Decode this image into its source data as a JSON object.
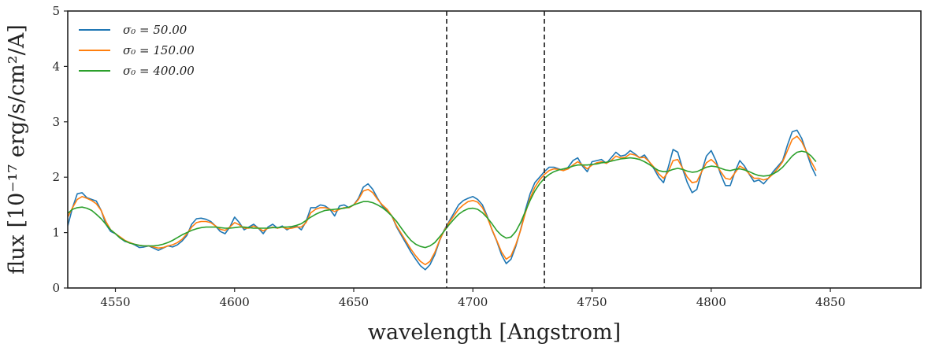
{
  "chart_data": {
    "type": "line",
    "title": "",
    "xlabel": "wavelength [Angstrom]",
    "ylabel": "flux [10⁻¹⁷ erg/s/cm²/A]",
    "xlim": [
      4530,
      4888
    ],
    "ylim": [
      0,
      5
    ],
    "xticks": [
      4550,
      4600,
      4650,
      4700,
      4750,
      4800,
      4850
    ],
    "yticks": [
      0,
      1,
      2,
      3,
      4,
      5
    ],
    "grid": false,
    "legend_position": "top-left",
    "vlines": [
      4689,
      4730
    ],
    "x_step": 2,
    "series": [
      {
        "name": "σ₀ = 50.00",
        "color": "#1f77b4",
        "values": [
          1.12,
          1.45,
          1.7,
          1.72,
          1.63,
          1.6,
          1.57,
          1.4,
          1.15,
          1.02,
          0.98,
          0.9,
          0.84,
          0.82,
          0.78,
          0.73,
          0.74,
          0.76,
          0.72,
          0.68,
          0.72,
          0.76,
          0.74,
          0.78,
          0.85,
          0.95,
          1.15,
          1.25,
          1.26,
          1.24,
          1.2,
          1.12,
          1.02,
          0.98,
          1.1,
          1.28,
          1.18,
          1.05,
          1.1,
          1.15,
          1.08,
          0.98,
          1.1,
          1.15,
          1.08,
          1.12,
          1.05,
          1.1,
          1.12,
          1.05,
          1.2,
          1.45,
          1.45,
          1.5,
          1.48,
          1.42,
          1.3,
          1.48,
          1.5,
          1.45,
          1.5,
          1.62,
          1.82,
          1.88,
          1.78,
          1.62,
          1.48,
          1.4,
          1.3,
          1.1,
          0.95,
          0.8,
          0.65,
          0.52,
          0.4,
          0.33,
          0.42,
          0.6,
          0.85,
          1.05,
          1.2,
          1.35,
          1.5,
          1.58,
          1.62,
          1.65,
          1.6,
          1.5,
          1.3,
          1.05,
          0.85,
          0.6,
          0.44,
          0.52,
          0.75,
          1.05,
          1.4,
          1.7,
          1.9,
          2.0,
          2.1,
          2.18,
          2.18,
          2.15,
          2.12,
          2.18,
          2.3,
          2.35,
          2.2,
          2.1,
          2.28,
          2.3,
          2.32,
          2.25,
          2.35,
          2.45,
          2.38,
          2.4,
          2.48,
          2.42,
          2.35,
          2.4,
          2.28,
          2.15,
          2.0,
          1.9,
          2.18,
          2.5,
          2.45,
          2.15,
          1.9,
          1.72,
          1.78,
          2.1,
          2.38,
          2.48,
          2.3,
          2.05,
          1.85,
          1.85,
          2.1,
          2.3,
          2.2,
          2.05,
          1.92,
          1.95,
          1.88,
          1.98,
          2.1,
          2.2,
          2.3,
          2.58,
          2.82,
          2.85,
          2.7,
          2.45,
          2.2,
          2.02
        ]
      },
      {
        "name": "σ₀ = 150.00",
        "color": "#ff7f0e",
        "values": [
          1.28,
          1.45,
          1.6,
          1.65,
          1.62,
          1.58,
          1.52,
          1.4,
          1.2,
          1.05,
          0.98,
          0.92,
          0.86,
          0.82,
          0.79,
          0.77,
          0.76,
          0.76,
          0.74,
          0.72,
          0.73,
          0.76,
          0.78,
          0.82,
          0.88,
          0.98,
          1.1,
          1.18,
          1.2,
          1.2,
          1.18,
          1.12,
          1.06,
          1.04,
          1.1,
          1.18,
          1.14,
          1.08,
          1.08,
          1.12,
          1.08,
          1.03,
          1.08,
          1.1,
          1.08,
          1.1,
          1.07,
          1.08,
          1.1,
          1.1,
          1.18,
          1.36,
          1.42,
          1.45,
          1.45,
          1.42,
          1.38,
          1.42,
          1.45,
          1.45,
          1.5,
          1.6,
          1.75,
          1.78,
          1.72,
          1.6,
          1.5,
          1.42,
          1.3,
          1.12,
          0.98,
          0.84,
          0.7,
          0.58,
          0.48,
          0.42,
          0.48,
          0.64,
          0.86,
          1.04,
          1.18,
          1.3,
          1.42,
          1.5,
          1.56,
          1.58,
          1.55,
          1.45,
          1.28,
          1.06,
          0.86,
          0.65,
          0.52,
          0.58,
          0.78,
          1.04,
          1.35,
          1.62,
          1.82,
          1.95,
          2.05,
          2.12,
          2.15,
          2.14,
          2.12,
          2.15,
          2.22,
          2.28,
          2.22,
          2.15,
          2.22,
          2.26,
          2.28,
          2.25,
          2.3,
          2.38,
          2.35,
          2.36,
          2.42,
          2.4,
          2.35,
          2.36,
          2.28,
          2.18,
          2.06,
          1.98,
          2.1,
          2.3,
          2.32,
          2.16,
          2.0,
          1.9,
          1.92,
          2.1,
          2.26,
          2.32,
          2.24,
          2.1,
          1.98,
          1.96,
          2.08,
          2.2,
          2.15,
          2.06,
          1.98,
          1.98,
          1.95,
          1.98,
          2.06,
          2.16,
          2.28,
          2.48,
          2.68,
          2.74,
          2.64,
          2.46,
          2.28,
          2.12
        ]
      },
      {
        "name": "σ₀ = 400.00",
        "color": "#2ca02c",
        "values": [
          1.35,
          1.42,
          1.45,
          1.46,
          1.44,
          1.4,
          1.33,
          1.25,
          1.15,
          1.05,
          0.98,
          0.9,
          0.85,
          0.81,
          0.79,
          0.77,
          0.76,
          0.76,
          0.76,
          0.77,
          0.79,
          0.82,
          0.86,
          0.91,
          0.96,
          1.0,
          1.04,
          1.07,
          1.09,
          1.1,
          1.1,
          1.1,
          1.09,
          1.08,
          1.08,
          1.09,
          1.1,
          1.1,
          1.09,
          1.08,
          1.08,
          1.08,
          1.08,
          1.09,
          1.09,
          1.1,
          1.1,
          1.11,
          1.13,
          1.16,
          1.22,
          1.28,
          1.33,
          1.37,
          1.4,
          1.41,
          1.42,
          1.43,
          1.44,
          1.46,
          1.5,
          1.53,
          1.56,
          1.56,
          1.54,
          1.5,
          1.45,
          1.38,
          1.3,
          1.2,
          1.08,
          0.96,
          0.86,
          0.79,
          0.75,
          0.73,
          0.76,
          0.82,
          0.92,
          1.03,
          1.14,
          1.24,
          1.33,
          1.39,
          1.43,
          1.44,
          1.42,
          1.36,
          1.27,
          1.16,
          1.04,
          0.95,
          0.9,
          0.92,
          1.02,
          1.18,
          1.38,
          1.58,
          1.75,
          1.88,
          1.98,
          2.05,
          2.1,
          2.13,
          2.15,
          2.17,
          2.2,
          2.22,
          2.22,
          2.22,
          2.23,
          2.24,
          2.26,
          2.27,
          2.29,
          2.31,
          2.33,
          2.34,
          2.35,
          2.34,
          2.32,
          2.28,
          2.23,
          2.17,
          2.12,
          2.1,
          2.11,
          2.14,
          2.16,
          2.14,
          2.11,
          2.09,
          2.1,
          2.14,
          2.18,
          2.2,
          2.19,
          2.16,
          2.13,
          2.12,
          2.14,
          2.15,
          2.13,
          2.1,
          2.06,
          2.03,
          2.02,
          2.03,
          2.06,
          2.11,
          2.18,
          2.28,
          2.38,
          2.45,
          2.47,
          2.45,
          2.38,
          2.28
        ]
      }
    ]
  }
}
